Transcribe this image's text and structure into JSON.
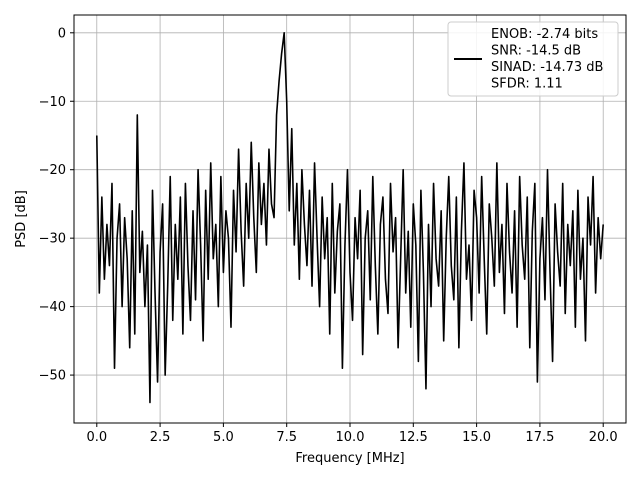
{
  "chart_data": {
    "type": "line",
    "xlabel": "Frequency [MHz]",
    "ylabel": "PSD [dB]",
    "xlim": [
      -0.9,
      20.9
    ],
    "ylim": [
      -57,
      2.6
    ],
    "xticks": [
      0.0,
      2.5,
      5.0,
      7.5,
      10.0,
      12.5,
      15.0,
      17.5,
      20.0
    ],
    "xtick_labels": [
      "0.0",
      "2.5",
      "5.0",
      "7.5",
      "10.0",
      "12.5",
      "15.0",
      "17.5",
      "20.0"
    ],
    "yticks": [
      0,
      -10,
      -20,
      -30,
      -40,
      -50
    ],
    "ytick_labels": [
      "0",
      "−10",
      "−20",
      "−30",
      "−40",
      "−50"
    ],
    "grid": true,
    "legend_position": "top-right",
    "legend_lines": [
      "ENOB: -2.74 bits",
      "SNR: -14.5 dB",
      "SINAD: -14.73 dB",
      "SFDR: 1.11"
    ],
    "line_color": "#000000",
    "series": [
      {
        "x": [
          0.0,
          0.1,
          0.2,
          0.3,
          0.4,
          0.5,
          0.6,
          0.7,
          0.8,
          0.9,
          1.0,
          1.1,
          1.2,
          1.3,
          1.4,
          1.5,
          1.6,
          1.7,
          1.8,
          1.9,
          2.0,
          2.1,
          2.2,
          2.3,
          2.4,
          2.5,
          2.6,
          2.7,
          2.8,
          2.9,
          3.0,
          3.1,
          3.2,
          3.3,
          3.4,
          3.5,
          3.6,
          3.7,
          3.8,
          3.9,
          4.0,
          4.1,
          4.2,
          4.3,
          4.4,
          4.5,
          4.6,
          4.7,
          4.8,
          4.9,
          5.0,
          5.1,
          5.2,
          5.3,
          5.4,
          5.5,
          5.6,
          5.7,
          5.8,
          5.9,
          6.0,
          6.1,
          6.2,
          6.3,
          6.4,
          6.5,
          6.6,
          6.7,
          6.8,
          6.9,
          7.0,
          7.1,
          7.2,
          7.3,
          7.4,
          7.5,
          7.6,
          7.7,
          7.8,
          7.9,
          8.0,
          8.1,
          8.2,
          8.3,
          8.4,
          8.5,
          8.6,
          8.7,
          8.8,
          8.9,
          9.0,
          9.1,
          9.2,
          9.3,
          9.4,
          9.5,
          9.6,
          9.7,
          9.8,
          9.9,
          10.0,
          10.1,
          10.2,
          10.3,
          10.4,
          10.5,
          10.6,
          10.7,
          10.8,
          10.9,
          11.0,
          11.1,
          11.2,
          11.3,
          11.4,
          11.5,
          11.6,
          11.7,
          11.8,
          11.9,
          12.0,
          12.1,
          12.2,
          12.3,
          12.4,
          12.5,
          12.6,
          12.7,
          12.8,
          12.9,
          13.0,
          13.1,
          13.2,
          13.3,
          13.4,
          13.5,
          13.6,
          13.7,
          13.8,
          13.9,
          14.0,
          14.1,
          14.2,
          14.3,
          14.4,
          14.5,
          14.6,
          14.7,
          14.8,
          14.9,
          15.0,
          15.1,
          15.2,
          15.3,
          15.4,
          15.5,
          15.6,
          15.7,
          15.8,
          15.9,
          16.0,
          16.1,
          16.2,
          16.3,
          16.4,
          16.5,
          16.6,
          16.7,
          16.8,
          16.9,
          17.0,
          17.1,
          17.2,
          17.3,
          17.4,
          17.5,
          17.6,
          17.7,
          17.8,
          17.9,
          18.0,
          18.1,
          18.2,
          18.3,
          18.4,
          18.5,
          18.6,
          18.7,
          18.8,
          18.9,
          19.0,
          19.1,
          19.2,
          19.3,
          19.4,
          19.5,
          19.6,
          19.7,
          19.8,
          19.9,
          20.0
        ],
        "y": [
          -15,
          -38,
          -24,
          -36,
          -28,
          -34,
          -22,
          -49,
          -30,
          -25,
          -40,
          -27,
          -33,
          -46,
          -26,
          -44,
          -12,
          -35,
          -29,
          -40,
          -31,
          -54,
          -23,
          -38,
          -51,
          -32,
          -25,
          -50,
          -37,
          -21,
          -42,
          -28,
          -36,
          -24,
          -44,
          -22,
          -34,
          -42,
          -26,
          -39,
          -20,
          -31,
          -45,
          -23,
          -36,
          -19,
          -33,
          -28,
          -40,
          -21,
          -35,
          -26,
          -30,
          -43,
          -23,
          -32,
          -17,
          -29,
          -37,
          -22,
          -30,
          -16,
          -27,
          -35,
          -19,
          -28,
          -22,
          -31,
          -17,
          -25,
          -27,
          -12,
          -7,
          -3,
          0,
          -10,
          -26,
          -14,
          -31,
          -22,
          -36,
          -20,
          -28,
          -34,
          -23,
          -37,
          -19,
          -30,
          -40,
          -24,
          -33,
          -27,
          -44,
          -22,
          -38,
          -29,
          -25,
          -49,
          -31,
          -20,
          -35,
          -42,
          -27,
          -33,
          -23,
          -47,
          -30,
          -26,
          -39,
          -21,
          -34,
          -44,
          -28,
          -24,
          -36,
          -41,
          -22,
          -32,
          -27,
          -46,
          -33,
          -20,
          -38,
          -29,
          -43,
          -25,
          -31,
          -48,
          -23,
          -35,
          -52,
          -28,
          -40,
          -22,
          -33,
          -37,
          -26,
          -45,
          -30,
          -21,
          -34,
          -39,
          -24,
          -46,
          -29,
          -19,
          -36,
          -31,
          -42,
          -23,
          -27,
          -38,
          -21,
          -33,
          -44,
          -25,
          -30,
          -37,
          -19,
          -35,
          -28,
          -41,
          -22,
          -32,
          -38,
          -26,
          -43,
          -21,
          -31,
          -36,
          -24,
          -46,
          -29,
          -22,
          -51,
          -33,
          -27,
          -39,
          -20,
          -35,
          -48,
          -25,
          -32,
          -37,
          -22,
          -41,
          -28,
          -34,
          -26,
          -43,
          -23,
          -36,
          -30,
          -45,
          -24,
          -31,
          -21,
          -38,
          -27,
          -33,
          -28
        ]
      }
    ]
  }
}
